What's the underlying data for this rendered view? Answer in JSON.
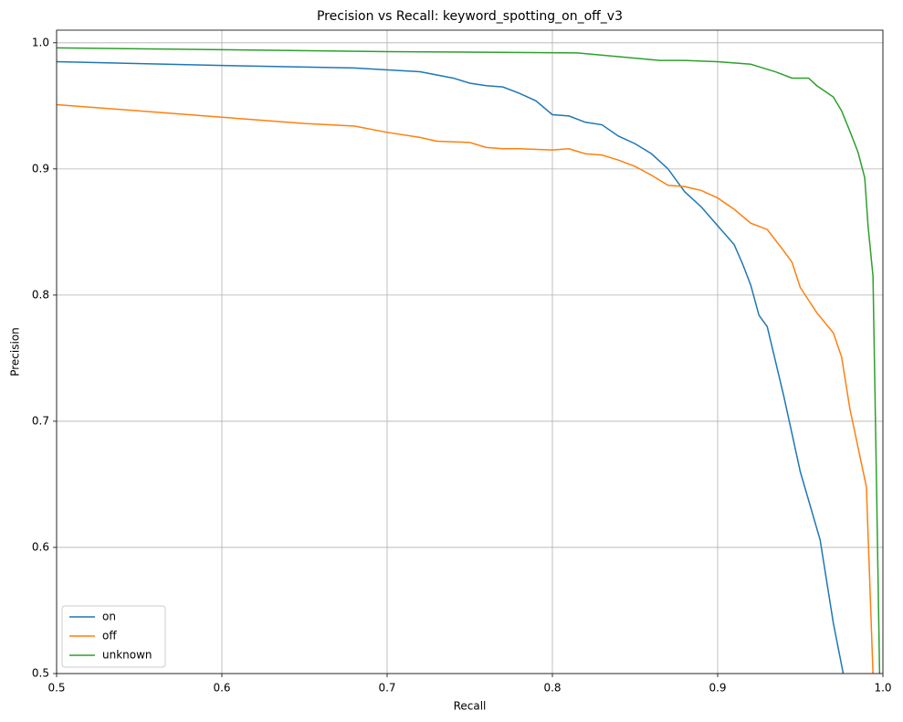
{
  "chart_data": {
    "type": "line",
    "title": "Precision vs Recall: keyword_spotting_on_off_v3",
    "x_label": "Recall",
    "y_label": "Precision",
    "xlim": [
      0.5,
      1.0
    ],
    "ylim": [
      0.5,
      1.01
    ],
    "xticks": [
      0.5,
      0.6,
      0.7,
      0.8,
      0.9,
      {
        "value": 1,
        "label": "1.0"
      }
    ],
    "yticks": [
      0.5,
      0.6,
      0.7,
      0.8,
      0.9,
      {
        "value": 1,
        "label": "1.0"
      }
    ],
    "grid": true,
    "legend": "lower left",
    "series": [
      {
        "name": "on",
        "color": "#1f77b4",
        "x": [
          0.5,
          0.6,
          0.68,
          0.72,
          0.74,
          0.75,
          0.76,
          0.77,
          0.78,
          0.79,
          0.8,
          0.81,
          0.82,
          0.83,
          0.84,
          0.85,
          0.86,
          0.87,
          0.88,
          0.89,
          0.9,
          0.91,
          0.915,
          0.92,
          0.925,
          0.93,
          0.94,
          0.95,
          0.962,
          0.97,
          0.976
        ],
        "values": [
          0.985,
          0.982,
          0.98,
          0.977,
          0.972,
          0.968,
          0.966,
          0.965,
          0.96,
          0.954,
          0.943,
          0.942,
          0.937,
          0.935,
          0.926,
          0.92,
          0.912,
          0.9,
          0.882,
          0.87,
          0.855,
          0.84,
          0.825,
          0.808,
          0.784,
          0.775,
          0.72,
          0.66,
          0.606,
          0.54,
          0.5
        ]
      },
      {
        "name": "off",
        "color": "#ff7f0e",
        "x": [
          0.5,
          0.6,
          0.65,
          0.68,
          0.7,
          0.72,
          0.73,
          0.75,
          0.76,
          0.77,
          0.78,
          0.8,
          0.81,
          0.82,
          0.83,
          0.84,
          0.85,
          0.86,
          0.87,
          0.88,
          0.89,
          0.9,
          0.91,
          0.92,
          0.93,
          0.94,
          0.945,
          0.95,
          0.96,
          0.97,
          0.975,
          0.98,
          0.99,
          0.994
        ],
        "values": [
          0.951,
          0.941,
          0.936,
          0.934,
          0.929,
          0.925,
          0.922,
          0.921,
          0.917,
          0.916,
          0.916,
          0.915,
          0.916,
          0.912,
          0.911,
          0.907,
          0.902,
          0.895,
          0.887,
          0.886,
          0.883,
          0.877,
          0.868,
          0.857,
          0.852,
          0.835,
          0.826,
          0.806,
          0.786,
          0.77,
          0.751,
          0.71,
          0.648,
          0.5
        ]
      },
      {
        "name": "unknown",
        "color": "#2ca02c",
        "x": [
          0.5,
          0.7,
          0.815,
          0.84,
          0.865,
          0.88,
          0.9,
          0.92,
          0.925,
          0.935,
          0.945,
          0.955,
          0.96,
          0.97,
          0.975,
          0.98,
          0.985,
          0.989,
          0.991,
          0.994,
          0.996,
          0.998
        ],
        "values": [
          0.996,
          0.993,
          0.992,
          0.989,
          0.986,
          0.986,
          0.985,
          0.983,
          0.981,
          0.977,
          0.972,
          0.972,
          0.966,
          0.957,
          0.946,
          0.93,
          0.913,
          0.893,
          0.855,
          0.815,
          0.66,
          0.5
        ]
      }
    ]
  }
}
